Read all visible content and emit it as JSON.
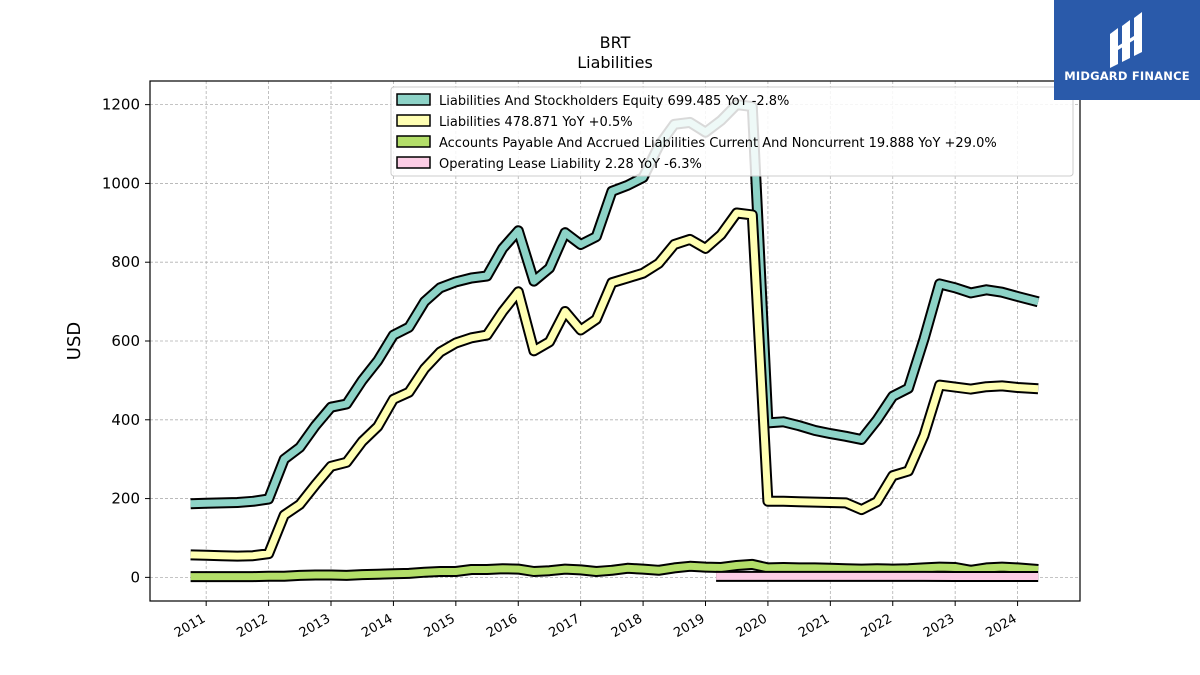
{
  "chart_data": {
    "type": "line",
    "title": "BRT",
    "subtitle": "Liabilities",
    "ylabel": "USD",
    "xlabel": "",
    "ylim": [
      -60,
      1260
    ],
    "xlim": [
      2010.1,
      2025.0
    ],
    "yticks": [
      0,
      200,
      400,
      600,
      800,
      1000,
      1200
    ],
    "xticks": [
      2011,
      2012,
      2013,
      2014,
      2015,
      2016,
      2017,
      2018,
      2019,
      2020,
      2021,
      2022,
      2023,
      2024
    ],
    "grid": true,
    "legend_position": "top-right",
    "series": [
      {
        "name": "Liabilities And Stockholders Equity",
        "legend": "Liabilities And Stockholders Equity  699.485 YoY -2.8%",
        "color": "#8dd3c7",
        "points": [
          [
            2010.75,
            187
          ],
          [
            2011.0,
            188
          ],
          [
            2011.25,
            189
          ],
          [
            2011.5,
            190
          ],
          [
            2011.75,
            193
          ],
          [
            2012.0,
            199
          ],
          [
            2012.25,
            300
          ],
          [
            2012.5,
            330
          ],
          [
            2012.75,
            385
          ],
          [
            2013.0,
            432
          ],
          [
            2013.25,
            440
          ],
          [
            2013.5,
            500
          ],
          [
            2013.75,
            550
          ],
          [
            2014.0,
            615
          ],
          [
            2014.25,
            635
          ],
          [
            2014.5,
            700
          ],
          [
            2014.75,
            735
          ],
          [
            2015.0,
            750
          ],
          [
            2015.25,
            760
          ],
          [
            2015.5,
            765
          ],
          [
            2015.75,
            835
          ],
          [
            2016.0,
            880
          ],
          [
            2016.25,
            752
          ],
          [
            2016.5,
            785
          ],
          [
            2016.75,
            875
          ],
          [
            2017.0,
            845
          ],
          [
            2017.25,
            865
          ],
          [
            2017.5,
            980
          ],
          [
            2017.75,
            995
          ],
          [
            2018.0,
            1015
          ],
          [
            2018.25,
            1095
          ],
          [
            2018.5,
            1150
          ],
          [
            2018.75,
            1155
          ],
          [
            2019.0,
            1130
          ],
          [
            2019.25,
            1160
          ],
          [
            2019.5,
            1200
          ],
          [
            2019.75,
            1195
          ],
          [
            2020.0,
            392
          ],
          [
            2020.25,
            395
          ],
          [
            2020.5,
            385
          ],
          [
            2020.75,
            373
          ],
          [
            2021.0,
            365
          ],
          [
            2021.25,
            358
          ],
          [
            2021.5,
            350
          ],
          [
            2021.75,
            400
          ],
          [
            2022.0,
            460
          ],
          [
            2022.25,
            480
          ],
          [
            2022.5,
            605
          ],
          [
            2022.75,
            745
          ],
          [
            2023.0,
            735
          ],
          [
            2023.25,
            722
          ],
          [
            2023.5,
            730
          ],
          [
            2023.75,
            724
          ],
          [
            2024.0,
            713
          ],
          [
            2024.33,
            699.485
          ]
        ]
      },
      {
        "name": "Liabilities",
        "legend": "Liabilities  478.871 YoY +0.5%",
        "color": "#ffffb3",
        "points": [
          [
            2010.75,
            57
          ],
          [
            2011.0,
            56
          ],
          [
            2011.25,
            55
          ],
          [
            2011.5,
            54
          ],
          [
            2011.75,
            55
          ],
          [
            2012.0,
            60
          ],
          [
            2012.25,
            158
          ],
          [
            2012.5,
            185
          ],
          [
            2012.75,
            235
          ],
          [
            2013.0,
            282
          ],
          [
            2013.25,
            292
          ],
          [
            2013.5,
            345
          ],
          [
            2013.75,
            383
          ],
          [
            2014.0,
            452
          ],
          [
            2014.25,
            470
          ],
          [
            2014.5,
            530
          ],
          [
            2014.75,
            572
          ],
          [
            2015.0,
            595
          ],
          [
            2015.25,
            608
          ],
          [
            2015.5,
            615
          ],
          [
            2015.75,
            675
          ],
          [
            2016.0,
            725
          ],
          [
            2016.25,
            575
          ],
          [
            2016.5,
            598
          ],
          [
            2016.75,
            675
          ],
          [
            2017.0,
            628
          ],
          [
            2017.25,
            655
          ],
          [
            2017.5,
            748
          ],
          [
            2017.75,
            760
          ],
          [
            2018.0,
            772
          ],
          [
            2018.25,
            797
          ],
          [
            2018.5,
            845
          ],
          [
            2018.75,
            858
          ],
          [
            2019.0,
            835
          ],
          [
            2019.25,
            870
          ],
          [
            2019.5,
            925
          ],
          [
            2019.75,
            920
          ],
          [
            2020.0,
            193
          ],
          [
            2020.25,
            193
          ],
          [
            2020.5,
            192
          ],
          [
            2020.75,
            191
          ],
          [
            2021.0,
            190
          ],
          [
            2021.25,
            189
          ],
          [
            2021.5,
            172
          ],
          [
            2021.75,
            192
          ],
          [
            2022.0,
            258
          ],
          [
            2022.25,
            270
          ],
          [
            2022.5,
            360
          ],
          [
            2022.75,
            488
          ],
          [
            2023.0,
            483
          ],
          [
            2023.25,
            478
          ],
          [
            2023.5,
            484
          ],
          [
            2023.75,
            486
          ],
          [
            2024.0,
            482
          ],
          [
            2024.33,
            478.871
          ]
        ]
      },
      {
        "name": "Accounts Payable And Accrued Liabilities Current And Noncurrent",
        "legend": "Accounts Payable And Accrued Liabilities Current And Noncurrent  19.888 YoY +29.0%",
        "color": "#b3de69",
        "points": [
          [
            2010.75,
            2
          ],
          [
            2011.0,
            2
          ],
          [
            2011.25,
            2
          ],
          [
            2011.5,
            2
          ],
          [
            2011.75,
            2
          ],
          [
            2012.0,
            3
          ],
          [
            2012.25,
            3
          ],
          [
            2012.5,
            5
          ],
          [
            2012.75,
            6
          ],
          [
            2013.0,
            6
          ],
          [
            2013.25,
            5
          ],
          [
            2013.5,
            7
          ],
          [
            2013.75,
            8
          ],
          [
            2014.0,
            9
          ],
          [
            2014.25,
            10
          ],
          [
            2014.5,
            13
          ],
          [
            2014.75,
            15
          ],
          [
            2015.0,
            15
          ],
          [
            2015.25,
            20
          ],
          [
            2015.5,
            20
          ],
          [
            2015.75,
            22
          ],
          [
            2016.0,
            21
          ],
          [
            2016.25,
            15
          ],
          [
            2016.5,
            17
          ],
          [
            2016.75,
            21
          ],
          [
            2017.0,
            19
          ],
          [
            2017.25,
            15
          ],
          [
            2017.5,
            18
          ],
          [
            2017.75,
            23
          ],
          [
            2018.0,
            21
          ],
          [
            2018.25,
            18
          ],
          [
            2018.5,
            24
          ],
          [
            2018.75,
            28
          ],
          [
            2019.0,
            26
          ],
          [
            2019.25,
            25
          ],
          [
            2019.5,
            30
          ],
          [
            2019.75,
            33
          ],
          [
            2020.0,
            24
          ],
          [
            2020.25,
            25
          ],
          [
            2020.5,
            24
          ],
          [
            2020.75,
            24
          ],
          [
            2021.0,
            23
          ],
          [
            2021.25,
            22
          ],
          [
            2021.5,
            21
          ],
          [
            2021.75,
            22
          ],
          [
            2022.0,
            21
          ],
          [
            2022.25,
            22
          ],
          [
            2022.5,
            24
          ],
          [
            2022.75,
            26
          ],
          [
            2023.0,
            25
          ],
          [
            2023.25,
            18
          ],
          [
            2023.5,
            24
          ],
          [
            2023.75,
            26
          ],
          [
            2024.0,
            24
          ],
          [
            2024.33,
            19.888
          ]
        ]
      },
      {
        "name": "Operating Lease Liability",
        "legend": "Operating Lease Liability  2.28 YoY -6.3%",
        "color": "#fccde5",
        "points": [
          [
            2019.17,
            2.4
          ],
          [
            2019.5,
            2.4
          ],
          [
            2020.0,
            2.4
          ],
          [
            2020.5,
            2.4
          ],
          [
            2021.0,
            2.4
          ],
          [
            2021.5,
            2.35
          ],
          [
            2022.0,
            2.35
          ],
          [
            2022.5,
            2.35
          ],
          [
            2023.0,
            2.3
          ],
          [
            2023.5,
            2.3
          ],
          [
            2024.0,
            2.3
          ],
          [
            2024.33,
            2.28
          ]
        ]
      }
    ]
  },
  "logo": {
    "text": "MIDGARD FINANCE",
    "icon": "midgard-logo-icon",
    "color": "#2a5aaa"
  }
}
